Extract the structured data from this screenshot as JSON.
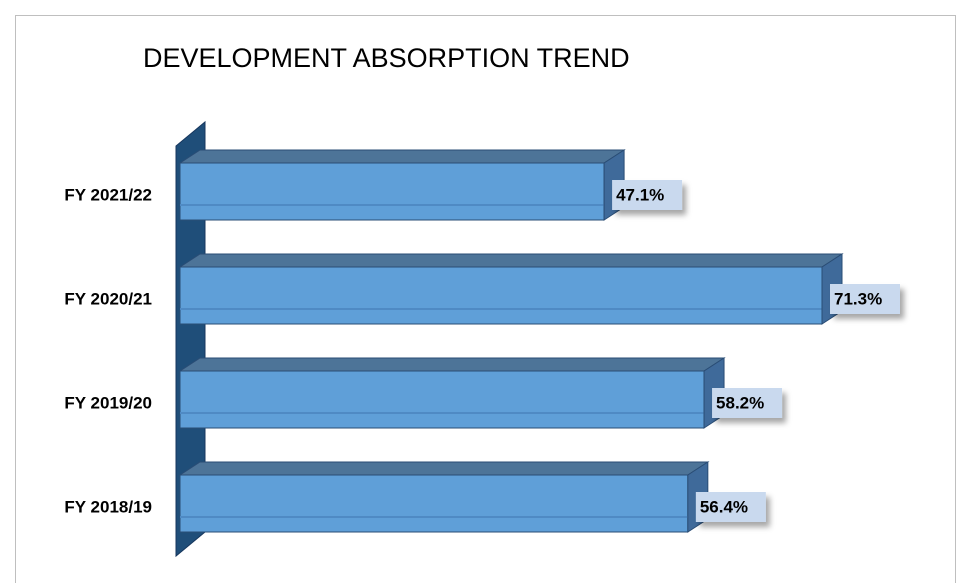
{
  "chart_data": {
    "type": "bar",
    "orientation": "horizontal",
    "title": "DEVELOPMENT ABSORPTION TREND",
    "categories": [
      "FY 2021/22",
      "FY 2020/21",
      "FY 2019/20",
      "FY 2018/19"
    ],
    "values": [
      47.1,
      71.3,
      58.2,
      56.4
    ],
    "value_labels": [
      "47.1%",
      "71.3%",
      "58.2%",
      "56.4%"
    ],
    "color": "#5f9fd8"
  }
}
